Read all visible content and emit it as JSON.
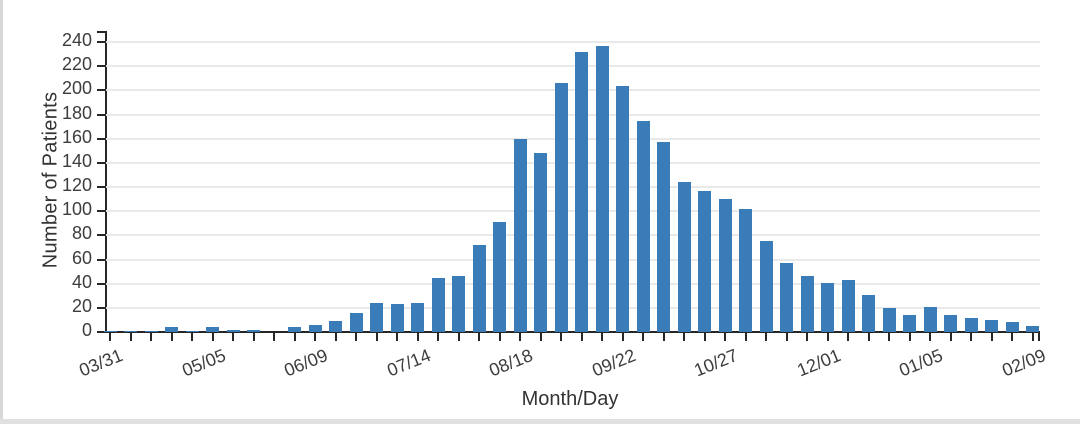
{
  "page": {
    "background": "#ffffff",
    "edge_strip_color": "#d8d8d8"
  },
  "chart_data": {
    "type": "bar",
    "title": "",
    "xlabel": "Month/Day",
    "ylabel": "Number of Patients",
    "categories": [
      "03/31",
      "04/07",
      "04/14",
      "04/21",
      "04/28",
      "05/05",
      "05/12",
      "05/19",
      "05/26",
      "06/02",
      "06/09",
      "06/16",
      "06/23",
      "06/30",
      "07/07",
      "07/14",
      "07/21",
      "07/28",
      "08/04",
      "08/11",
      "08/18",
      "08/25",
      "09/01",
      "09/08",
      "09/15",
      "09/22",
      "09/29",
      "10/06",
      "10/13",
      "10/20",
      "10/27",
      "11/03",
      "11/10",
      "11/17",
      "11/24",
      "12/01",
      "12/08",
      "12/15",
      "12/22",
      "12/29",
      "01/05",
      "01/12",
      "01/19",
      "01/26",
      "02/02",
      "02/09"
    ],
    "values": [
      1,
      1,
      1,
      4,
      1,
      4,
      2,
      2,
      0,
      4,
      6,
      9,
      16,
      24,
      23,
      24,
      45,
      46,
      72,
      91,
      160,
      148,
      206,
      232,
      237,
      204,
      175,
      157,
      124,
      117,
      110,
      102,
      75,
      57,
      46,
      41,
      43,
      31,
      20,
      14,
      21,
      14,
      12,
      10,
      8,
      5
    ],
    "labeled_x_ticks": [
      "03/31",
      "05/05",
      "06/09",
      "07/14",
      "08/18",
      "09/22",
      "10/27",
      "12/01",
      "01/05",
      "02/09"
    ],
    "y_ticks": [
      0,
      20,
      40,
      60,
      80,
      100,
      120,
      140,
      160,
      180,
      200,
      220,
      240
    ],
    "ylim": [
      0,
      248
    ],
    "grid": "horizontal",
    "legend": "none",
    "bar_color": "#3a7cb7",
    "axis_color": "#262626",
    "gridline_color": "#e9e9e9",
    "text_color": "#3d3d3d"
  }
}
